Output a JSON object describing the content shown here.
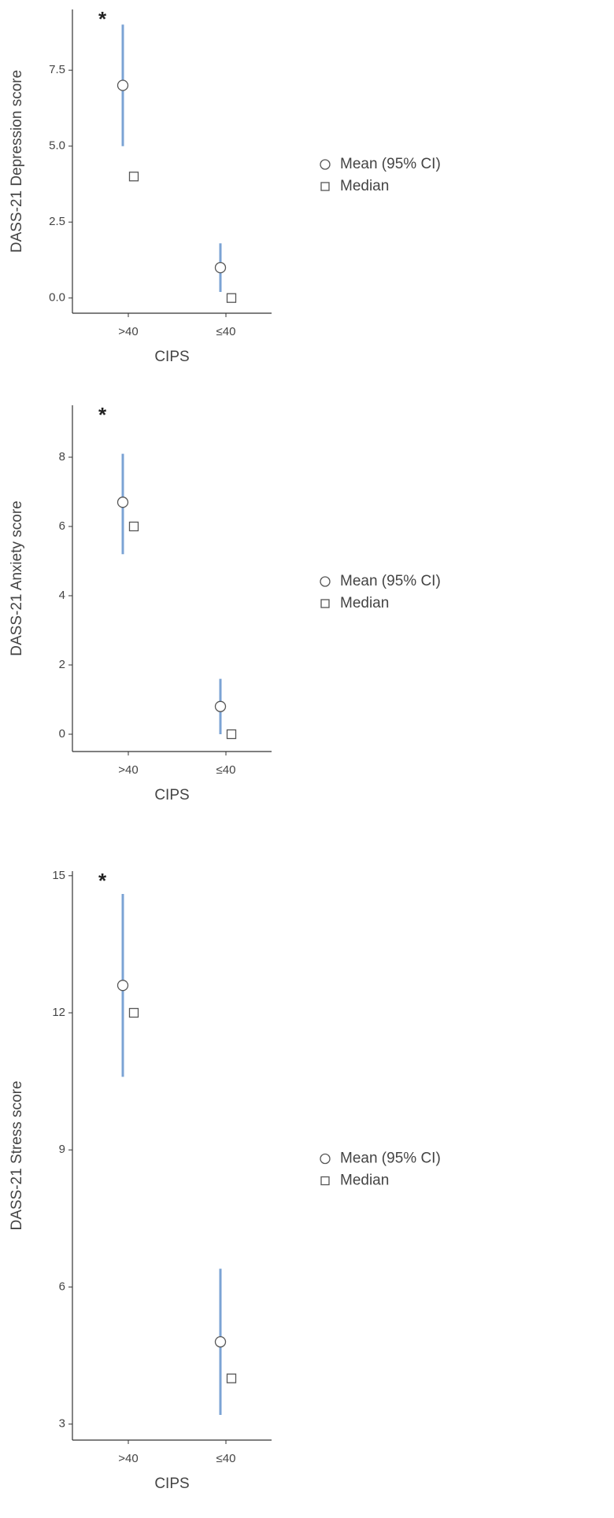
{
  "chart_data": [
    {
      "type": "point",
      "y_label": "DASS-21 Depression score",
      "x_label": "CIPS",
      "annotation": "*",
      "categories": [
        ">40",
        "≤40"
      ],
      "series": [
        {
          "name": "Mean (95% CI)",
          "color": "#555555",
          "error_color": "#7ba3d4",
          "marker": "circle",
          "values": [
            7.0,
            1.0
          ],
          "ci_low": [
            5.0,
            0.2
          ],
          "ci_high": [
            9.0,
            1.8
          ]
        },
        {
          "name": "Median",
          "color": "#555555",
          "marker": "square",
          "values": [
            4,
            0
          ]
        }
      ],
      "ylim": [
        -0.5,
        9.5
      ],
      "yticks": [
        {
          "value": 0,
          "label": "0.0"
        },
        2.5,
        {
          "value": 5,
          "label": "5.0"
        },
        7.5
      ]
    },
    {
      "type": "point",
      "y_label": "DASS-21 Anxiety score",
      "x_label": "CIPS",
      "annotation": "*",
      "categories": [
        ">40",
        "≤40"
      ],
      "series": [
        {
          "name": "Mean (95% CI)",
          "color": "#555555",
          "error_color": "#7ba3d4",
          "marker": "circle",
          "values": [
            6.7,
            0.8
          ],
          "ci_low": [
            5.2,
            0.0
          ],
          "ci_high": [
            8.1,
            1.6
          ]
        },
        {
          "name": "Median",
          "color": "#555555",
          "marker": "square",
          "values": [
            6,
            0
          ]
        }
      ],
      "ylim": [
        -0.5,
        9.5
      ],
      "yticks": [
        0,
        2,
        4,
        6,
        8
      ]
    },
    {
      "type": "point",
      "y_label": "DASS-21 Stress score",
      "x_label": "CIPS",
      "annotation": "*",
      "categories": [
        ">40",
        "≤40"
      ],
      "series": [
        {
          "name": "Mean (95% CI)",
          "color": "#555555",
          "error_color": "#7ba3d4",
          "marker": "circle",
          "values": [
            12.6,
            4.8
          ],
          "ci_low": [
            10.6,
            3.2
          ],
          "ci_high": [
            14.6,
            6.4
          ]
        },
        {
          "name": "Median",
          "color": "#555555",
          "marker": "square",
          "values": [
            12,
            4
          ]
        }
      ],
      "ylim": [
        2.65,
        15.1
      ],
      "yticks": [
        3,
        6,
        9,
        12,
        15
      ]
    }
  ]
}
